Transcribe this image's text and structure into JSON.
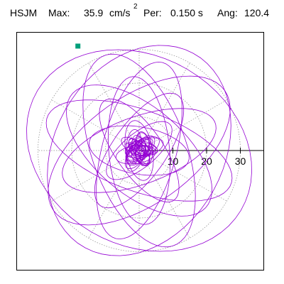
{
  "header": {
    "station": "HSJM",
    "max_label": "Max:",
    "max_value": "35.9",
    "max_unit_base": "cm/s",
    "max_unit_exp": "2",
    "per_label": "Per:",
    "per_value": "0.150 s",
    "ang_label": "Ang:",
    "ang_value": "120.4"
  },
  "chart_data": {
    "type": "polar-orbit",
    "units": "cm/s2",
    "max": 35.9,
    "period_s": 0.15,
    "angle_deg": 120.4,
    "r_ticks": [
      10,
      20,
      30
    ],
    "r_tick_labels": [
      "10",
      "20",
      "30"
    ],
    "radial_spokes_deg": [
      0,
      30,
      60,
      90,
      120,
      150,
      180,
      210,
      240,
      270,
      300,
      330
    ],
    "grid_rings": [
      10,
      20,
      30
    ],
    "grid": true,
    "trace_color": "#9400d3",
    "grid_color": "#8a8a8a",
    "marker_color": "#009f7a",
    "start_marker": {
      "r": 35.9,
      "angle_deg": 120.4
    },
    "orbit_loops": [
      {
        "a": 31,
        "b": 16,
        "rot_deg": 35
      },
      {
        "a": 30,
        "b": 14,
        "rot_deg": 110
      },
      {
        "a": 29,
        "b": 12,
        "rot_deg": 160
      },
      {
        "a": 27,
        "b": 11,
        "rot_deg": 75
      },
      {
        "a": 26,
        "b": 13,
        "rot_deg": 140
      },
      {
        "a": 24,
        "b": 10,
        "rot_deg": 20
      },
      {
        "a": 22,
        "b": 9,
        "rot_deg": 95
      },
      {
        "a": 20,
        "b": 8,
        "rot_deg": 55
      },
      {
        "a": 18,
        "b": 7,
        "rot_deg": 125
      },
      {
        "a": 15,
        "b": 7,
        "rot_deg": 170
      },
      {
        "a": 12,
        "b": 5,
        "rot_deg": 40
      },
      {
        "a": 9,
        "b": 4,
        "rot_deg": 100
      },
      {
        "a": 33,
        "b": 25,
        "rot_deg": 60
      },
      {
        "a": 35,
        "b": 28,
        "rot_deg": 150
      }
    ],
    "core_scatter": {
      "loops": 30,
      "max_r": 6
    }
  }
}
